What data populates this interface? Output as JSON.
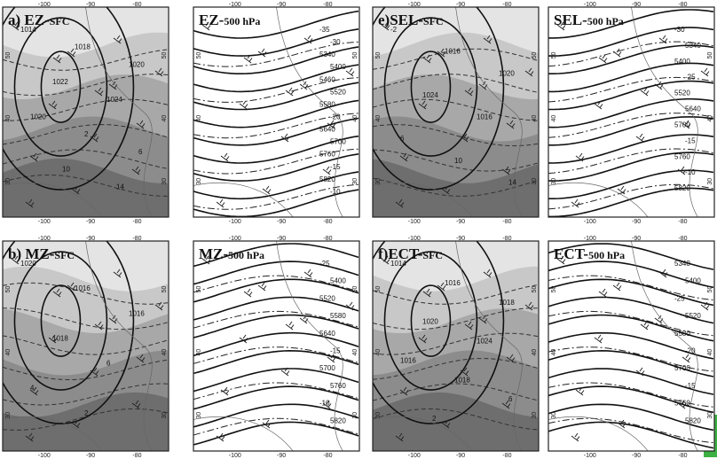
{
  "axes": {
    "lon_labels": [
      "-100",
      "-90",
      "-80"
    ],
    "lat_labels": [
      "30",
      "40",
      "50"
    ]
  },
  "panels": [
    {
      "label": "a) EZ-",
      "level": "SFC",
      "kind": "sfc",
      "contour_labels": [
        "1014",
        "1018",
        "1020",
        "1022",
        "1024",
        "1020",
        "2",
        "6",
        "10",
        "14"
      ]
    },
    {
      "label": "EZ-",
      "level": "500 hPa",
      "kind": "upper",
      "contour_labels": [
        "-35",
        "-30",
        "5340",
        "5400",
        "5460",
        "5520",
        "5580",
        "-20",
        "5640",
        "5700",
        "5760",
        "-15",
        "5820",
        "-10"
      ]
    },
    {
      "label": "e)SEL-",
      "level": "SFC",
      "kind": "sfc",
      "contour_labels": [
        "-2",
        "1016",
        "1020",
        "1024",
        "1016",
        "6",
        "10",
        "14"
      ]
    },
    {
      "label": "SEL-",
      "level": "500 hPa",
      "kind": "upper",
      "contour_labels": [
        "-30",
        "5340",
        "5400",
        "-25",
        "5520",
        "5640",
        "5700",
        "-15",
        "5760",
        "-10",
        "5820"
      ]
    },
    {
      "label": "b) MZ-",
      "level": "SFC",
      "kind": "sfc",
      "contour_labels": [
        "1020",
        "1016",
        "1016",
        "1018",
        "6",
        "4",
        "2"
      ]
    },
    {
      "label": "MZ-",
      "level": "500 hPa",
      "kind": "upper",
      "contour_labels": [
        "-25",
        "5400",
        "5520",
        "5580",
        "5640",
        "-15",
        "5700",
        "5760",
        "-10",
        "5820"
      ]
    },
    {
      "label": "f)ECT-",
      "level": "SFC",
      "kind": "sfc",
      "contour_labels": [
        "1014",
        "1016",
        "1018",
        "1020",
        "1024",
        "1016",
        "1018",
        "6",
        "2"
      ]
    },
    {
      "label": "ECT-",
      "level": "500 hPa",
      "kind": "upper",
      "contour_labels": [
        "5340",
        "5400",
        "-25",
        "5520",
        "5580",
        "-20",
        "5700",
        "-15",
        "5760",
        "5820"
      ]
    }
  ]
}
